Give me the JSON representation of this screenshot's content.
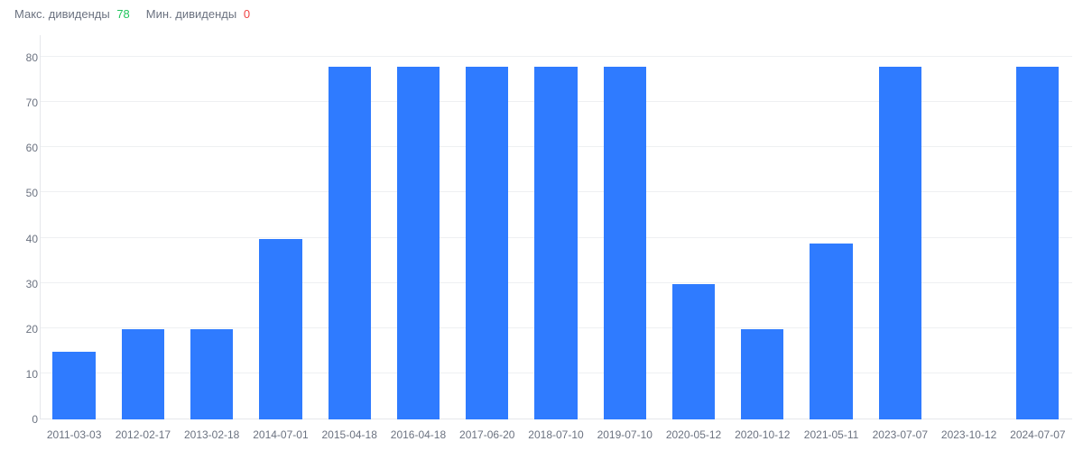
{
  "header": {
    "max_label": "Макс. дивиденды",
    "max_value": "78",
    "min_label": "Мин. дивиденды",
    "min_value": "0"
  },
  "chart": {
    "type": "bar",
    "bar_color": "#2f7bff",
    "background_color": "#ffffff",
    "grid_color": "#eef0f2",
    "axis_color": "#e5e7eb",
    "tick_color": "#6b7280",
    "tick_fontsize": 12,
    "ylim": [
      0,
      85
    ],
    "yticks": [
      0,
      10,
      20,
      30,
      40,
      50,
      60,
      70,
      80
    ],
    "bar_width_ratio": 0.62,
    "categories": [
      "2011-03-03",
      "2012-02-17",
      "2013-02-18",
      "2014-07-01",
      "2015-04-18",
      "2016-04-18",
      "2017-06-20",
      "2018-07-10",
      "2019-07-10",
      "2020-05-12",
      "2020-10-12",
      "2021-05-11",
      "2023-07-07",
      "2023-10-12",
      "2024-07-07"
    ],
    "values": [
      15,
      20,
      20,
      40,
      78,
      78,
      78,
      78,
      78,
      30,
      20,
      39,
      78,
      0,
      78
    ]
  }
}
